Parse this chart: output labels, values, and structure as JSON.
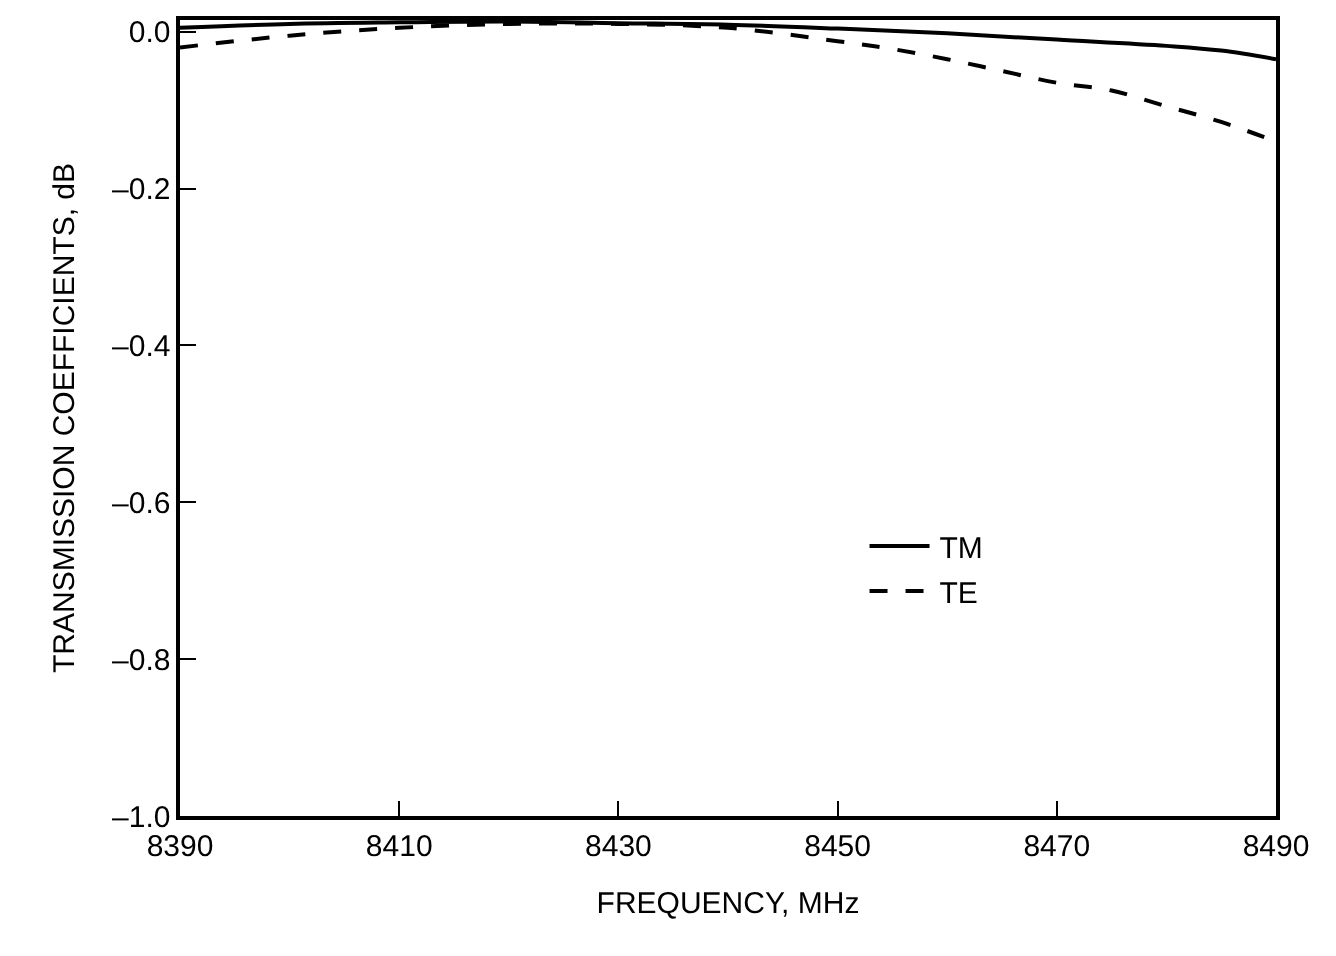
{
  "chart_data": {
    "type": "line",
    "xlabel": "FREQUENCY, MHz",
    "ylabel": "TRANSMISSION COEFFICIENTS, dB",
    "xlim": [
      8390,
      8490
    ],
    "xticks": [
      8390,
      8410,
      8430,
      8450,
      8470,
      8490
    ],
    "ylim": [
      -1.0,
      0.015
    ],
    "yticks": [
      {
        "value": 0.0,
        "label": "0.0"
      },
      {
        "value": -0.2,
        "label": "–0.2"
      },
      {
        "value": -0.4,
        "label": "–0.4"
      },
      {
        "value": -0.6,
        "label": "–0.6"
      },
      {
        "value": -0.8,
        "label": "–0.8"
      },
      {
        "value": -1.0,
        "label": "–1.0"
      }
    ],
    "legend": "right",
    "marker": "none",
    "series": [
      {
        "name": "TM",
        "color": "#000000",
        "line_style": "solid",
        "x": [
          8390,
          8400,
          8410,
          8420,
          8430,
          8440,
          8450,
          8460,
          8470,
          8480,
          8485,
          8490
        ],
        "values": [
          0.005,
          0.01,
          0.012,
          0.013,
          0.011,
          0.009,
          0.004,
          -0.002,
          -0.01,
          -0.018,
          -0.024,
          -0.035
        ]
      },
      {
        "name": "TE",
        "color": "#000000",
        "line_style": "dashed",
        "x": [
          8390,
          8400,
          8410,
          8420,
          8430,
          8440,
          8450,
          8455,
          8460,
          8465,
          8470,
          8475,
          8480,
          8485,
          8490
        ],
        "values": [
          -0.02,
          -0.005,
          0.005,
          0.01,
          0.01,
          0.005,
          -0.012,
          -0.022,
          -0.035,
          -0.05,
          -0.065,
          -0.075,
          -0.095,
          -0.115,
          -0.14
        ]
      }
    ]
  }
}
